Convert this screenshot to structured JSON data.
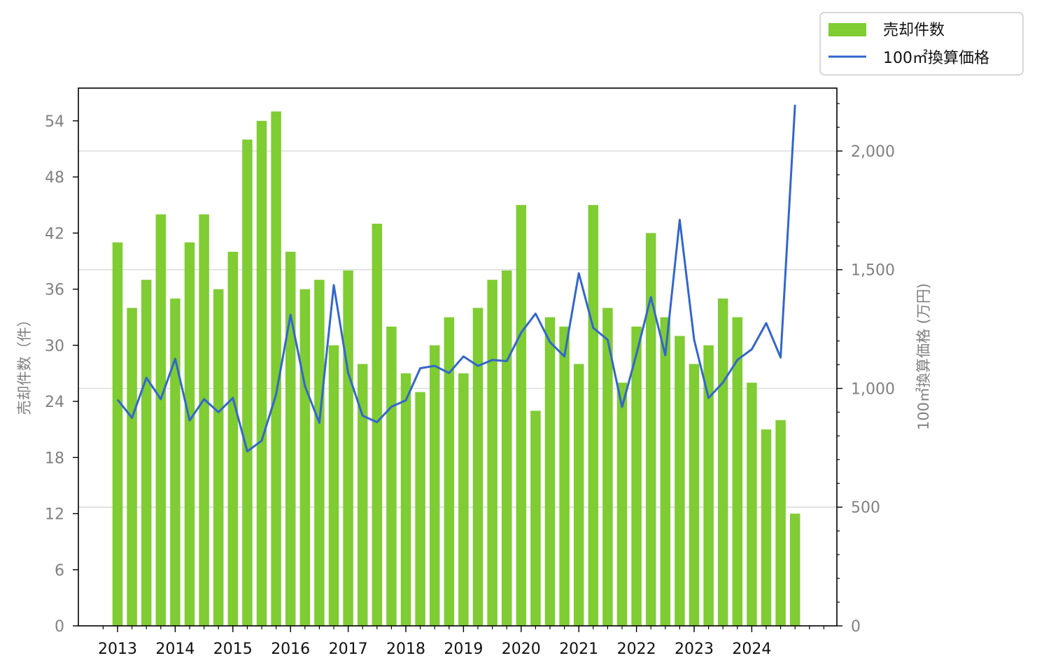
{
  "chart_data": {
    "type": "bar+line",
    "x_tick_labels": [
      "2013",
      "2014",
      "2015",
      "2016",
      "2017",
      "2018",
      "2019",
      "2020",
      "2021",
      "2022",
      "2023",
      "2024"
    ],
    "series": [
      {
        "name": "売却件数",
        "type": "bar",
        "axis": "left",
        "color": "#7fcc33",
        "values": [
          41,
          34,
          37,
          44,
          35,
          41,
          44,
          36,
          40,
          52,
          54,
          55,
          40,
          36,
          37,
          30,
          38,
          28,
          43,
          32,
          27,
          25,
          30,
          33,
          27,
          34,
          37,
          38,
          45,
          23,
          33,
          32,
          28,
          45,
          34,
          26,
          32,
          42,
          33,
          31,
          28,
          30,
          35,
          33,
          26,
          21,
          22,
          12
        ]
      },
      {
        "name": "100㎡換算価格",
        "type": "line",
        "axis": "right",
        "color": "#3366cc",
        "values": [
          953,
          876,
          1045,
          955,
          1125,
          865,
          955,
          900,
          960,
          735,
          780,
          975,
          1310,
          1010,
          855,
          1435,
          1065,
          885,
          858,
          923,
          950,
          1085,
          1095,
          1065,
          1135,
          1095,
          1120,
          1115,
          1235,
          1315,
          1195,
          1135,
          1485,
          1255,
          1205,
          922,
          1145,
          1385,
          1140,
          1710,
          1205,
          960,
          1025,
          1120,
          1165,
          1275,
          1130,
          2195
        ]
      }
    ],
    "y_left": {
      "label": "売却件数（件）",
      "ylim": [
        0,
        57.5
      ],
      "ticks": [
        "0",
        "6",
        "12",
        "18",
        "24",
        "30",
        "36",
        "42",
        "48",
        "54"
      ]
    },
    "y_right": {
      "label": "100㎡換算価格 (万円)",
      "ylim": [
        0,
        2265
      ],
      "ticks": [
        "0",
        "500",
        "1,000",
        "1,500",
        "2,000"
      ]
    },
    "legend": {
      "placement": "top-right, outside plot",
      "entries": [
        "売却件数",
        "100㎡換算価格"
      ]
    },
    "grid": "horizontal, right axis"
  }
}
